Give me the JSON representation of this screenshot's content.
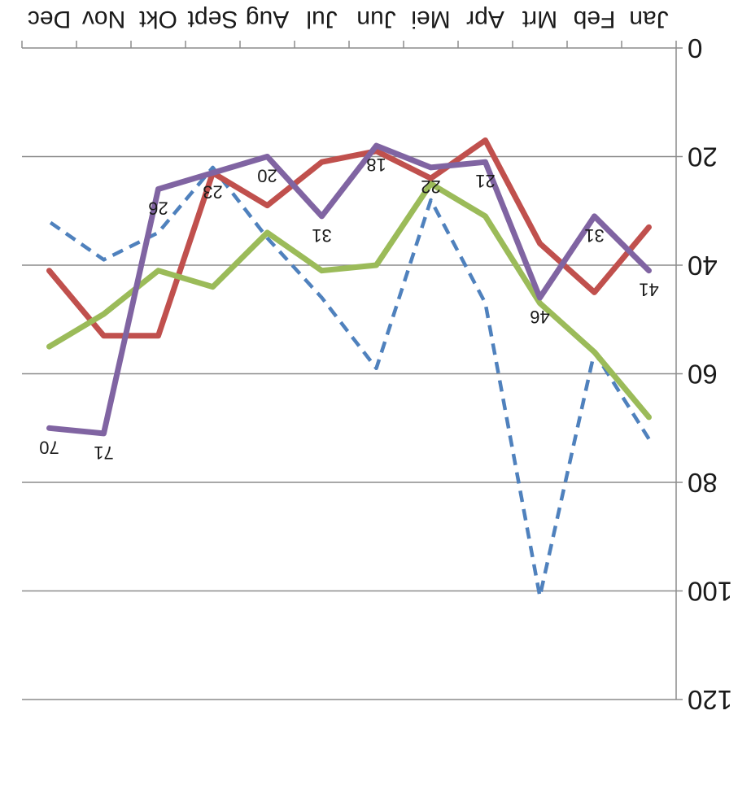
{
  "chart_data": {
    "type": "line",
    "categories": [
      "Jan",
      "Feb",
      "Mrt",
      "Apr",
      "Mei",
      "Jun",
      "Jul",
      "Aug",
      "Sept",
      "Okt",
      "Nov",
      "Dec"
    ],
    "ylim": [
      0,
      120
    ],
    "y_ticks": [
      "0",
      "20",
      "40",
      "60",
      "80",
      "100",
      "120"
    ],
    "grid": "horizontal",
    "legend": "none",
    "orientation": "rotated 180 degrees",
    "series": [
      {
        "color": "#4f81bd",
        "style": "dashed",
        "values": [
          72,
          56,
          101,
          47,
          28,
          59,
          46,
          35,
          22,
          34,
          39,
          32
        ]
      },
      {
        "color": "#c0504d",
        "style": "solid",
        "values": [
          33,
          45,
          36,
          17,
          24,
          19,
          21,
          29,
          23,
          53,
          53,
          41
        ]
      },
      {
        "color": "#9bbb59",
        "style": "solid",
        "values": [
          68,
          56,
          47,
          31,
          25,
          40,
          41,
          34,
          44,
          41,
          49,
          55
        ]
      },
      {
        "color": "#8064a2",
        "style": "solid",
        "values": [
          41,
          31,
          46,
          21,
          22,
          18,
          31,
          20,
          23,
          26,
          71,
          70
        ],
        "data_labels": [
          "41",
          "31",
          "46",
          "21",
          "22",
          "18",
          "31",
          "20",
          "23",
          "26",
          "71",
          "70"
        ]
      }
    ]
  }
}
